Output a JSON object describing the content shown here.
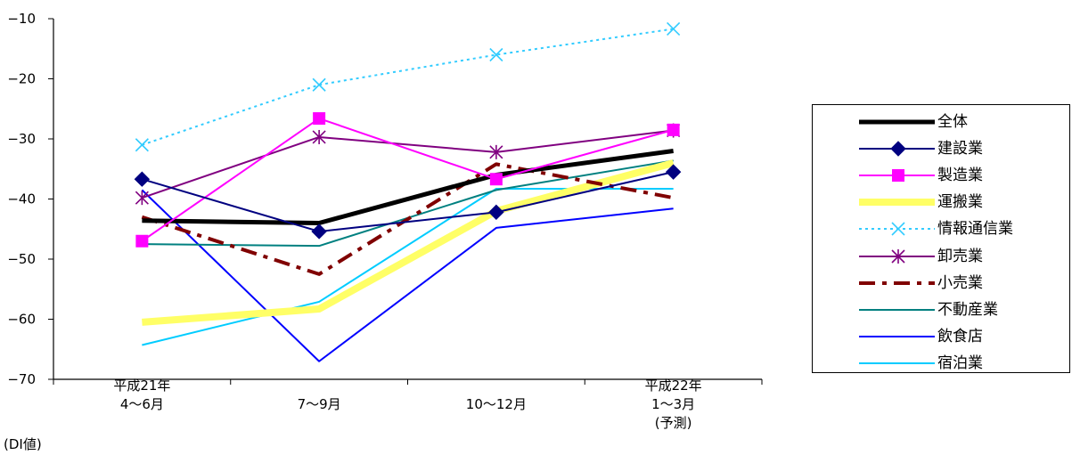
{
  "chart_data": {
    "type": "line",
    "title": "",
    "unit_label": "(DI値)",
    "ylim": [
      -70,
      -10
    ],
    "yticks": [
      -10,
      -20,
      -30,
      -40,
      -50,
      -60,
      -70
    ],
    "ytick_labels": [
      "−10",
      "−20",
      "−30",
      "−40",
      "−50",
      "−60",
      "−70"
    ],
    "categories": [
      [
        "平成21年",
        "4〜6月"
      ],
      [
        "",
        "7〜9月"
      ],
      [
        "",
        "10〜12月"
      ],
      [
        "平成22年",
        "1〜3月",
        "(予測)"
      ]
    ],
    "series": [
      {
        "name": "全体",
        "color": "#000000",
        "style": "thick-solid",
        "marker": "none",
        "values": [
          -43.6,
          -44.0,
          -36.0,
          -32.0
        ]
      },
      {
        "name": "建設業",
        "color": "#000080",
        "style": "solid",
        "marker": "diamond",
        "values": [
          -36.7,
          -45.4,
          -42.2,
          -35.5
        ]
      },
      {
        "name": "製造業",
        "color": "#ff00ff",
        "style": "solid",
        "marker": "square",
        "values": [
          -47.0,
          -26.6,
          -36.7,
          -28.5
        ]
      },
      {
        "name": "運搬業",
        "color": "#ffff66",
        "style": "very-thick-solid",
        "marker": "none",
        "values": [
          -60.5,
          -58.3,
          -42.0,
          -34.0
        ]
      },
      {
        "name": "情報通信業",
        "color": "#33ccff",
        "style": "dotted",
        "marker": "x",
        "values": [
          -31.0,
          -21.0,
          -16.0,
          -11.7
        ]
      },
      {
        "name": "卸売業",
        "color": "#800080",
        "style": "solid",
        "marker": "asterisk",
        "values": [
          -39.8,
          -29.7,
          -32.2,
          -28.6
        ]
      },
      {
        "name": "小売業",
        "color": "#800000",
        "style": "dash-dot-thick",
        "marker": "none",
        "values": [
          -43.0,
          -52.5,
          -34.2,
          -39.8
        ]
      },
      {
        "name": "不動産業",
        "color": "#008080",
        "style": "solid",
        "marker": "none",
        "values": [
          -47.5,
          -47.8,
          -38.5,
          -33.6
        ]
      },
      {
        "name": "飲食店",
        "color": "#0000ff",
        "style": "solid",
        "marker": "none",
        "values": [
          -38.5,
          -67.0,
          -44.8,
          -41.6
        ]
      },
      {
        "name": "宿泊業",
        "color": "#00ccff",
        "style": "solid",
        "marker": "none",
        "values": [
          -64.3,
          -57.1,
          -38.3,
          -38.3
        ]
      }
    ],
    "grid": false,
    "legend_position": "right"
  }
}
